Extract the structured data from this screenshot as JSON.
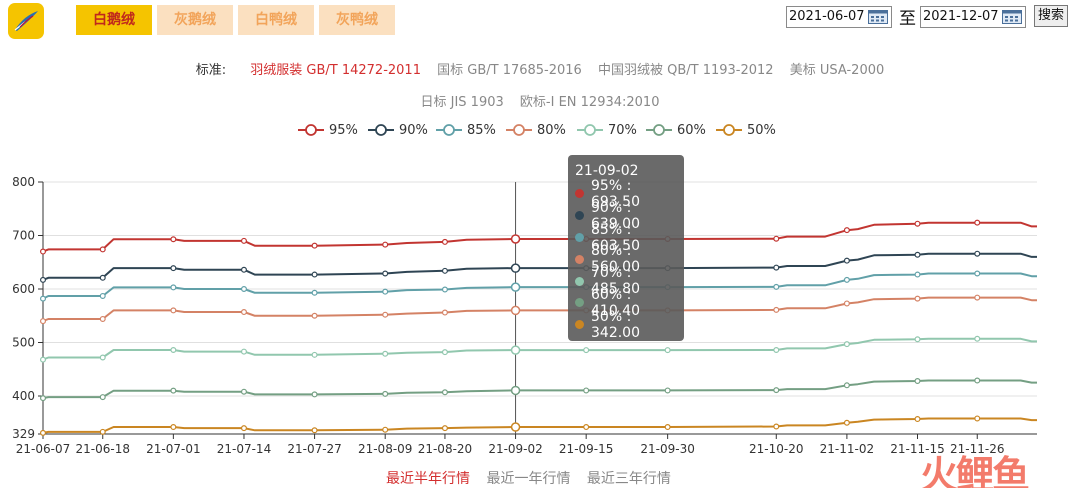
{
  "tabs": [
    {
      "label": "白鹅绒",
      "active": true
    },
    {
      "label": "灰鹅绒",
      "active": false
    },
    {
      "label": "白鸭绒",
      "active": false
    },
    {
      "label": "灰鸭绒",
      "active": false
    }
  ],
  "date_range": {
    "start": "2021-06-07",
    "to_label": "至",
    "end": "2021-12-07",
    "search_label": "搜索"
  },
  "standards": {
    "label": "标准:",
    "row1": [
      "羽绒服装 GB/T 14272-2011",
      "国标 GB/T 17685-2016",
      "中国羽绒被 QB/T 1193-2012",
      "美标 USA-2000"
    ],
    "row2": [
      "日标 JIS 1903",
      "欧标-I EN 12934:2010"
    ],
    "active": "羽绒服装 GB/T 14272-2011"
  },
  "periods": [
    {
      "label": "最近半年行情",
      "active": true
    },
    {
      "label": "最近一年行情",
      "active": false
    },
    {
      "label": "最近三年行情",
      "active": false
    }
  ],
  "watermark": "火鲤鱼",
  "colors": {
    "95%": "#c23531",
    "90%": "#2f4554",
    "85%": "#61a0a8",
    "80%": "#d48265",
    "70%": "#91c7ae",
    "60%": "#749f83",
    "50%": "#ca8622"
  },
  "tooltip": {
    "title": "21-09-02",
    "rows": [
      {
        "name": "95%",
        "text": "95% : 693.50"
      },
      {
        "name": "90%",
        "text": "90% : 639.00"
      },
      {
        "name": "85%",
        "text": "85% : 603.50"
      },
      {
        "name": "80%",
        "text": "80% : 560.00"
      },
      {
        "name": "70%",
        "text": "70% : 485.80"
      },
      {
        "name": "60%",
        "text": "60% : 410.40"
      },
      {
        "name": "50%",
        "text": "50% : 342.00"
      }
    ]
  },
  "chart_data": {
    "type": "line",
    "title": "",
    "xlabel": "",
    "ylabel": "",
    "ylim": [
      329,
      800
    ],
    "yticks": [
      329,
      400,
      500,
      600,
      700,
      800
    ],
    "xlim": [
      "2021-06-07",
      "2021-12-07"
    ],
    "xticks": [
      "21-06-07",
      "21-06-18",
      "21-07-01",
      "21-07-14",
      "21-07-27",
      "21-08-09",
      "21-08-20",
      "21-09-02",
      "21-09-15",
      "21-09-30",
      "21-10-20",
      "21-11-02",
      "21-11-15",
      "21-11-26"
    ],
    "grid": true,
    "legend_position": "top",
    "highlight_x": "2021-09-02",
    "series": [
      {
        "name": "95%",
        "points": [
          [
            "2021-06-07",
            670
          ],
          [
            "2021-06-08",
            674
          ],
          [
            "2021-06-18",
            674
          ],
          [
            "2021-06-20",
            693
          ],
          [
            "2021-07-01",
            693
          ],
          [
            "2021-07-03",
            690
          ],
          [
            "2021-07-14",
            690
          ],
          [
            "2021-07-16",
            681
          ],
          [
            "2021-07-27",
            681
          ],
          [
            "2021-08-09",
            683
          ],
          [
            "2021-08-13",
            686
          ],
          [
            "2021-08-20",
            688
          ],
          [
            "2021-08-24",
            692
          ],
          [
            "2021-09-02",
            693.5
          ],
          [
            "2021-09-15",
            693.5
          ],
          [
            "2021-09-30",
            693.5
          ],
          [
            "2021-10-20",
            694
          ],
          [
            "2021-10-22",
            698
          ],
          [
            "2021-10-29",
            698
          ],
          [
            "2021-11-02",
            710
          ],
          [
            "2021-11-04",
            712
          ],
          [
            "2021-11-07",
            720
          ],
          [
            "2021-11-15",
            722
          ],
          [
            "2021-11-17",
            724
          ],
          [
            "2021-11-26",
            724
          ],
          [
            "2021-12-04",
            724
          ],
          [
            "2021-12-06",
            717
          ],
          [
            "2021-12-07",
            717
          ]
        ]
      },
      {
        "name": "90%",
        "points": [
          [
            "2021-06-07",
            617
          ],
          [
            "2021-06-08",
            621
          ],
          [
            "2021-06-18",
            621
          ],
          [
            "2021-06-20",
            639
          ],
          [
            "2021-07-01",
            639
          ],
          [
            "2021-07-03",
            636
          ],
          [
            "2021-07-14",
            636
          ],
          [
            "2021-07-16",
            627
          ],
          [
            "2021-07-27",
            627
          ],
          [
            "2021-08-09",
            629
          ],
          [
            "2021-08-13",
            632
          ],
          [
            "2021-08-20",
            634
          ],
          [
            "2021-08-24",
            638
          ],
          [
            "2021-09-02",
            639
          ],
          [
            "2021-09-15",
            639
          ],
          [
            "2021-09-30",
            639
          ],
          [
            "2021-10-20",
            640
          ],
          [
            "2021-10-22",
            643
          ],
          [
            "2021-10-29",
            643
          ],
          [
            "2021-11-02",
            653
          ],
          [
            "2021-11-04",
            655
          ],
          [
            "2021-11-07",
            663
          ],
          [
            "2021-11-15",
            664
          ],
          [
            "2021-11-17",
            666
          ],
          [
            "2021-11-26",
            666
          ],
          [
            "2021-12-04",
            666
          ],
          [
            "2021-12-06",
            660
          ],
          [
            "2021-12-07",
            660
          ]
        ]
      },
      {
        "name": "85%",
        "points": [
          [
            "2021-06-07",
            582
          ],
          [
            "2021-06-08",
            587
          ],
          [
            "2021-06-18",
            587
          ],
          [
            "2021-06-20",
            603
          ],
          [
            "2021-07-01",
            603
          ],
          [
            "2021-07-03",
            600
          ],
          [
            "2021-07-14",
            600
          ],
          [
            "2021-07-16",
            593
          ],
          [
            "2021-07-27",
            593
          ],
          [
            "2021-08-09",
            595
          ],
          [
            "2021-08-13",
            598
          ],
          [
            "2021-08-20",
            599
          ],
          [
            "2021-08-24",
            602
          ],
          [
            "2021-09-02",
            603.5
          ],
          [
            "2021-09-15",
            603.5
          ],
          [
            "2021-09-30",
            603.5
          ],
          [
            "2021-10-20",
            604
          ],
          [
            "2021-10-22",
            607
          ],
          [
            "2021-10-29",
            607
          ],
          [
            "2021-11-02",
            617
          ],
          [
            "2021-11-04",
            619
          ],
          [
            "2021-11-07",
            626
          ],
          [
            "2021-11-15",
            627
          ],
          [
            "2021-11-17",
            629
          ],
          [
            "2021-11-26",
            629
          ],
          [
            "2021-12-04",
            629
          ],
          [
            "2021-12-06",
            624
          ],
          [
            "2021-12-07",
            624
          ]
        ]
      },
      {
        "name": "80%",
        "points": [
          [
            "2021-06-07",
            540
          ],
          [
            "2021-06-08",
            544
          ],
          [
            "2021-06-18",
            544
          ],
          [
            "2021-06-20",
            560
          ],
          [
            "2021-07-01",
            560
          ],
          [
            "2021-07-03",
            557
          ],
          [
            "2021-07-14",
            557
          ],
          [
            "2021-07-16",
            550
          ],
          [
            "2021-07-27",
            550
          ],
          [
            "2021-08-09",
            552
          ],
          [
            "2021-08-13",
            554
          ],
          [
            "2021-08-20",
            556
          ],
          [
            "2021-08-24",
            559
          ],
          [
            "2021-09-02",
            560
          ],
          [
            "2021-09-15",
            560
          ],
          [
            "2021-09-30",
            560
          ],
          [
            "2021-10-20",
            561
          ],
          [
            "2021-10-22",
            564
          ],
          [
            "2021-10-29",
            564
          ],
          [
            "2021-11-02",
            573
          ],
          [
            "2021-11-04",
            575
          ],
          [
            "2021-11-07",
            581
          ],
          [
            "2021-11-15",
            582
          ],
          [
            "2021-11-17",
            584
          ],
          [
            "2021-11-26",
            584
          ],
          [
            "2021-12-04",
            584
          ],
          [
            "2021-12-06",
            579
          ],
          [
            "2021-12-07",
            579
          ]
        ]
      },
      {
        "name": "70%",
        "points": [
          [
            "2021-06-07",
            468
          ],
          [
            "2021-06-08",
            472
          ],
          [
            "2021-06-18",
            472
          ],
          [
            "2021-06-20",
            486
          ],
          [
            "2021-07-01",
            486
          ],
          [
            "2021-07-03",
            483
          ],
          [
            "2021-07-14",
            483
          ],
          [
            "2021-07-16",
            477
          ],
          [
            "2021-07-27",
            477
          ],
          [
            "2021-08-09",
            479
          ],
          [
            "2021-08-13",
            481
          ],
          [
            "2021-08-20",
            482
          ],
          [
            "2021-08-24",
            485
          ],
          [
            "2021-09-02",
            485.8
          ],
          [
            "2021-09-15",
            485.8
          ],
          [
            "2021-09-30",
            485.8
          ],
          [
            "2021-10-20",
            486
          ],
          [
            "2021-10-22",
            489
          ],
          [
            "2021-10-29",
            489
          ],
          [
            "2021-11-02",
            497
          ],
          [
            "2021-11-04",
            499
          ],
          [
            "2021-11-07",
            505
          ],
          [
            "2021-11-15",
            506
          ],
          [
            "2021-11-17",
            507
          ],
          [
            "2021-11-26",
            507
          ],
          [
            "2021-12-04",
            507
          ],
          [
            "2021-12-06",
            502
          ],
          [
            "2021-12-07",
            502
          ]
        ]
      },
      {
        "name": "60%",
        "points": [
          [
            "2021-06-07",
            396
          ],
          [
            "2021-06-08",
            398
          ],
          [
            "2021-06-18",
            398
          ],
          [
            "2021-06-20",
            410
          ],
          [
            "2021-07-01",
            410
          ],
          [
            "2021-07-03",
            408
          ],
          [
            "2021-07-14",
            408
          ],
          [
            "2021-07-16",
            403
          ],
          [
            "2021-07-27",
            403
          ],
          [
            "2021-08-09",
            404
          ],
          [
            "2021-08-13",
            406
          ],
          [
            "2021-08-20",
            407
          ],
          [
            "2021-08-24",
            409
          ],
          [
            "2021-09-02",
            410.4
          ],
          [
            "2021-09-15",
            410.4
          ],
          [
            "2021-09-30",
            410.4
          ],
          [
            "2021-10-20",
            411
          ],
          [
            "2021-10-22",
            413
          ],
          [
            "2021-10-29",
            413
          ],
          [
            "2021-11-02",
            420
          ],
          [
            "2021-11-04",
            422
          ],
          [
            "2021-11-07",
            427
          ],
          [
            "2021-11-15",
            428
          ],
          [
            "2021-11-17",
            429
          ],
          [
            "2021-11-26",
            429
          ],
          [
            "2021-12-04",
            429
          ],
          [
            "2021-12-06",
            425
          ],
          [
            "2021-12-07",
            425
          ]
        ]
      },
      {
        "name": "50%",
        "points": [
          [
            "2021-06-07",
            331
          ],
          [
            "2021-06-08",
            333
          ],
          [
            "2021-06-18",
            333
          ],
          [
            "2021-06-20",
            342
          ],
          [
            "2021-07-01",
            342
          ],
          [
            "2021-07-03",
            340
          ],
          [
            "2021-07-14",
            340
          ],
          [
            "2021-07-16",
            336
          ],
          [
            "2021-07-27",
            336
          ],
          [
            "2021-08-09",
            337
          ],
          [
            "2021-08-13",
            339
          ],
          [
            "2021-08-20",
            340
          ],
          [
            "2021-08-24",
            341
          ],
          [
            "2021-09-02",
            342
          ],
          [
            "2021-09-15",
            342
          ],
          [
            "2021-09-30",
            342
          ],
          [
            "2021-10-20",
            343
          ],
          [
            "2021-10-22",
            345
          ],
          [
            "2021-10-29",
            345
          ],
          [
            "2021-11-02",
            350
          ],
          [
            "2021-11-04",
            352
          ],
          [
            "2021-11-07",
            356
          ],
          [
            "2021-11-15",
            357
          ],
          [
            "2021-11-17",
            358
          ],
          [
            "2021-11-26",
            358
          ],
          [
            "2021-12-04",
            358
          ],
          [
            "2021-12-06",
            355
          ],
          [
            "2021-12-07",
            355
          ]
        ]
      }
    ]
  }
}
